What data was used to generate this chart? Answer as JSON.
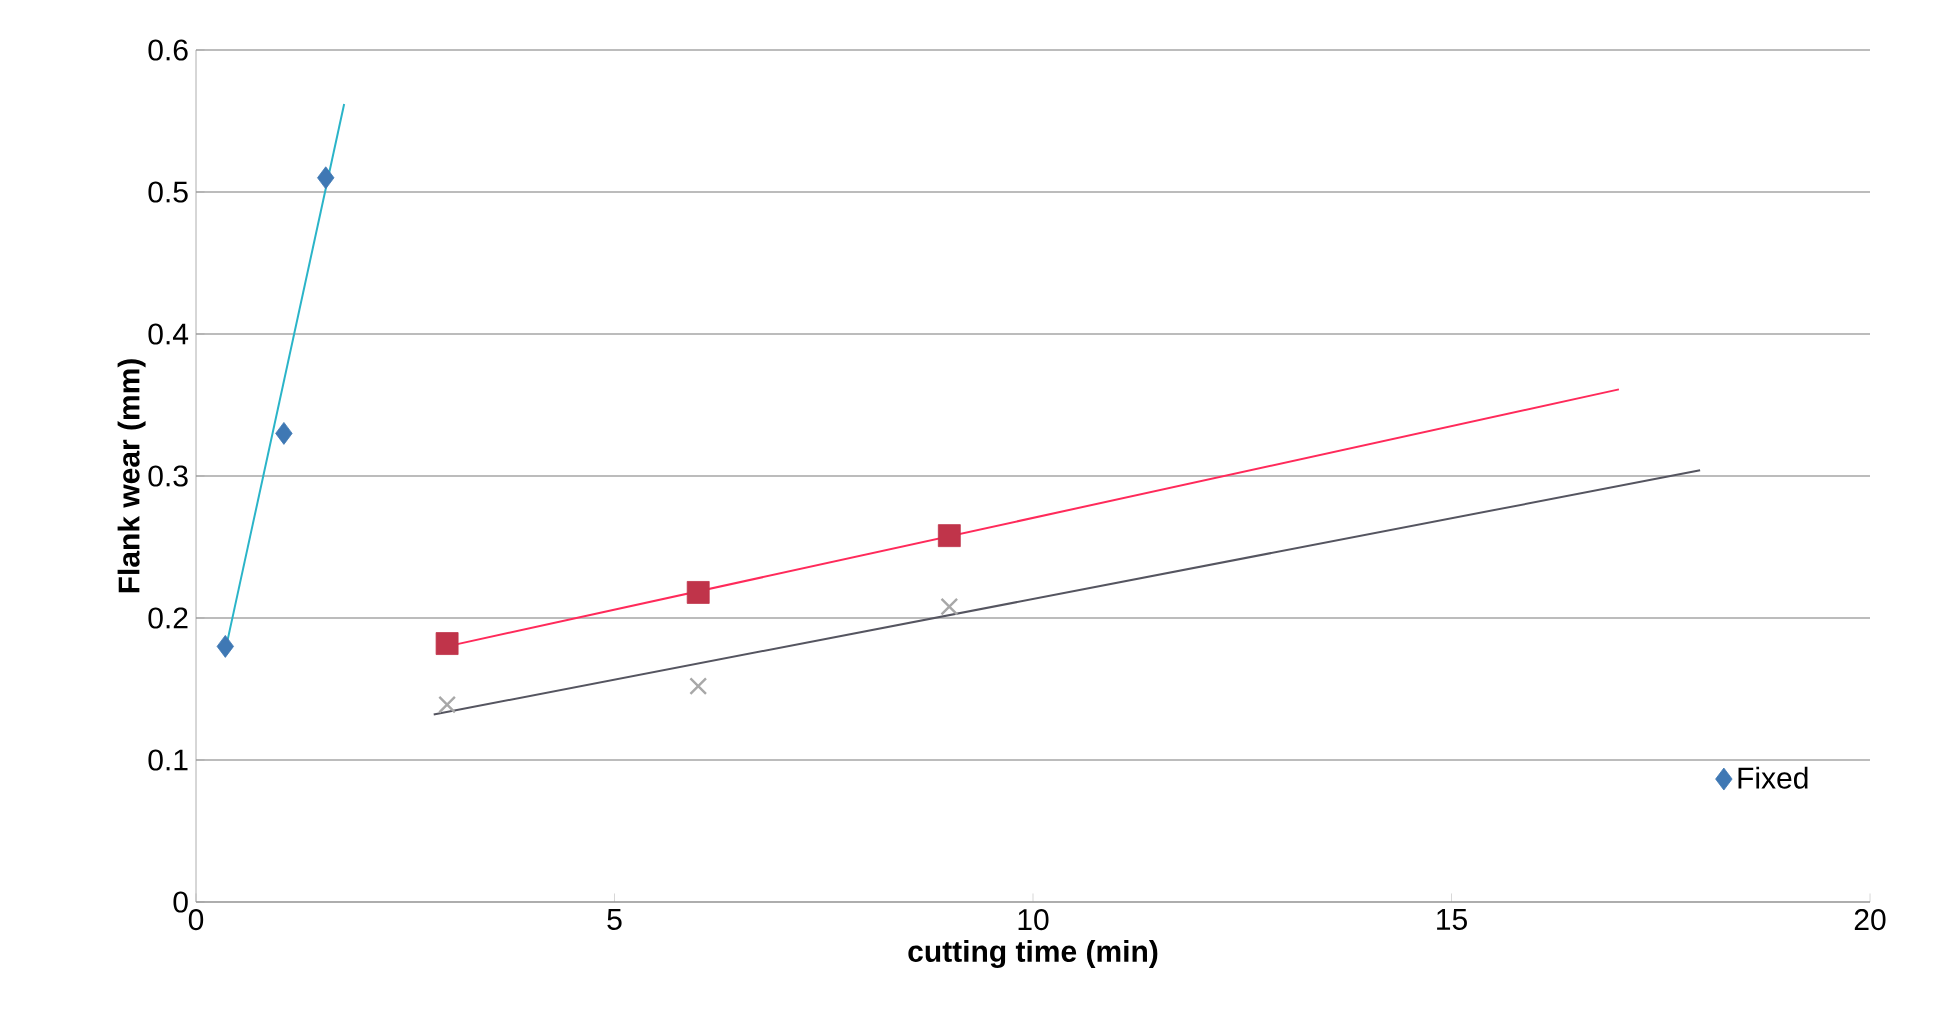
{
  "chart_data": {
    "type": "scatter",
    "xlabel": "cutting time (min)",
    "ylabel": "Flank wear (mm)",
    "xlim": [
      0,
      20
    ],
    "xticks": [
      0,
      5,
      10,
      15,
      20
    ],
    "ylim": [
      0,
      0.6
    ],
    "yticks": [
      0,
      0.1,
      0.2,
      0.3,
      0.4,
      0.5,
      0.6
    ],
    "grid": "y",
    "legend": "bottom right",
    "series": [
      {
        "name": "Fixed",
        "marker": "diamond",
        "color": "#3f78b4",
        "x": [
          0.35,
          1.05,
          1.55
        ],
        "values": [
          0.18,
          0.33,
          0.51
        ]
      },
      {
        "marker": "square",
        "color": "#c0344a",
        "x": [
          3,
          6,
          9
        ],
        "values": [
          0.182,
          0.218,
          0.258
        ]
      },
      {
        "marker": "cross",
        "color": "#a8a8a8",
        "x": [
          3,
          6,
          9
        ],
        "values": [
          0.139,
          0.152,
          0.208
        ]
      },
      {
        "type": "line",
        "color": "#2ab4c8",
        "x": [
          0.35,
          1.77
        ],
        "values": [
          0.177,
          0.562
        ]
      },
      {
        "type": "line",
        "color": "#ff2a5a",
        "x": [
          3,
          17
        ],
        "values": [
          0.18,
          0.361
        ]
      },
      {
        "type": "line",
        "color": "#555560",
        "x": [
          2.84,
          17.97
        ],
        "values": [
          0.132,
          0.304
        ]
      }
    ]
  }
}
